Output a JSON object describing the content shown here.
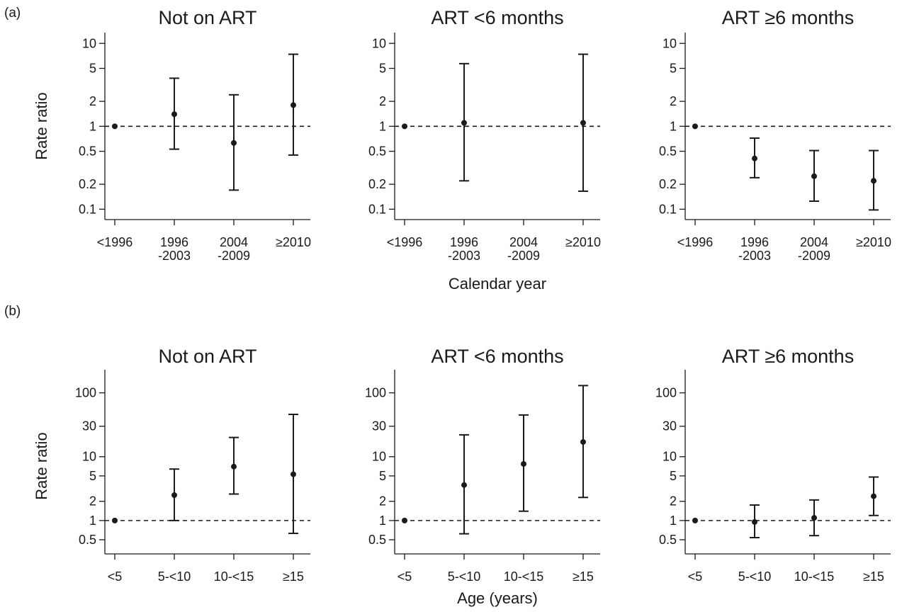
{
  "panel_labels": {
    "a": "(a)",
    "b": "(b)"
  },
  "chart_data": [
    {
      "panel": "a",
      "type": "scatter",
      "error_bars": true,
      "title": "Not on ART",
      "ylabel": "Rate ratio",
      "xlabel": "",
      "y_scale": "log",
      "ylim": [
        0.075,
        13.5
      ],
      "y_ticks": [
        10,
        5,
        2,
        1,
        0.5,
        0.2,
        0.1
      ],
      "y_tick_labels": [
        "10",
        "5",
        "2",
        "1",
        "0.5",
        "0.2",
        "0.1"
      ],
      "categories": [
        [
          "<1996"
        ],
        [
          "1996",
          "-2003"
        ],
        [
          "2004",
          "-2009"
        ],
        [
          "≥2010"
        ]
      ],
      "reference_line": 1,
      "grid": false,
      "points": [
        {
          "y": 1,
          "lower": null,
          "upper": null
        },
        {
          "y": 1.4,
          "lower": 0.53,
          "upper": 3.8
        },
        {
          "y": 0.63,
          "lower": 0.17,
          "upper": 2.4
        },
        {
          "y": 1.8,
          "lower": 0.45,
          "upper": 7.4
        }
      ]
    },
    {
      "panel": "a",
      "type": "scatter",
      "error_bars": true,
      "title": "ART <6 months",
      "ylabel": "",
      "xlabel": "Calendar year",
      "y_scale": "log",
      "ylim": [
        0.075,
        13.5
      ],
      "y_ticks": [
        10,
        5,
        2,
        1,
        0.5,
        0.2,
        0.1
      ],
      "y_tick_labels": [
        "10",
        "5",
        "2",
        "1",
        "0.5",
        "0.2",
        "0.1"
      ],
      "categories": [
        [
          "<1996"
        ],
        [
          "1996",
          "-2003"
        ],
        [
          "2004",
          "-2009"
        ],
        [
          "≥2010"
        ]
      ],
      "reference_line": 1,
      "grid": false,
      "points": [
        {
          "y": 1,
          "lower": null,
          "upper": null
        },
        {
          "y": 1.1,
          "lower": 0.22,
          "upper": 5.7
        },
        null,
        {
          "y": 1.1,
          "lower": 0.165,
          "upper": 7.4
        }
      ]
    },
    {
      "panel": "a",
      "type": "scatter",
      "error_bars": true,
      "title": "ART ≥6 months",
      "ylabel": "",
      "xlabel": "",
      "y_scale": "log",
      "ylim": [
        0.075,
        13.5
      ],
      "y_ticks": [
        10,
        5,
        2,
        1,
        0.5,
        0.2,
        0.1
      ],
      "y_tick_labels": [
        "10",
        "5",
        "2",
        "1",
        "0.5",
        "0.2",
        "0.1"
      ],
      "categories": [
        [
          "<1996"
        ],
        [
          "1996",
          "-2003"
        ],
        [
          "2004",
          "-2009"
        ],
        [
          "≥2010"
        ]
      ],
      "reference_line": 1,
      "grid": false,
      "points": [
        {
          "y": 1,
          "lower": null,
          "upper": null
        },
        {
          "y": 0.41,
          "lower": 0.24,
          "upper": 0.72
        },
        {
          "y": 0.25,
          "lower": 0.125,
          "upper": 0.51
        },
        {
          "y": 0.22,
          "lower": 0.098,
          "upper": 0.51
        }
      ]
    },
    {
      "panel": "b",
      "type": "scatter",
      "error_bars": true,
      "title": "Not on ART",
      "ylabel": "Rate ratio",
      "xlabel": "",
      "y_scale": "log",
      "ylim": [
        0.3,
        230
      ],
      "y_ticks": [
        100,
        30,
        10,
        5,
        2,
        1,
        0.5
      ],
      "y_tick_labels": [
        "100",
        "30",
        "10",
        "5",
        "2",
        "1",
        "0.5"
      ],
      "categories": [
        [
          "<5"
        ],
        [
          "5-<10"
        ],
        [
          "10-<15"
        ],
        [
          "≥15"
        ]
      ],
      "reference_line": 1,
      "grid": false,
      "points": [
        {
          "y": 1,
          "lower": null,
          "upper": null
        },
        {
          "y": 2.5,
          "lower": 1.0,
          "upper": 6.4
        },
        {
          "y": 7.0,
          "lower": 2.6,
          "upper": 20
        },
        {
          "y": 5.3,
          "lower": 0.63,
          "upper": 46
        }
      ]
    },
    {
      "panel": "b",
      "type": "scatter",
      "error_bars": true,
      "title": "ART <6 months",
      "ylabel": "",
      "xlabel": "Age (years)",
      "y_scale": "log",
      "ylim": [
        0.3,
        230
      ],
      "y_ticks": [
        100,
        30,
        10,
        5,
        2,
        1,
        0.5
      ],
      "y_tick_labels": [
        "100",
        "30",
        "10",
        "5",
        "2",
        "1",
        "0.5"
      ],
      "categories": [
        [
          "<5"
        ],
        [
          "5-<10"
        ],
        [
          "10-<15"
        ],
        [
          "≥15"
        ]
      ],
      "reference_line": 1,
      "grid": false,
      "points": [
        {
          "y": 1,
          "lower": null,
          "upper": null
        },
        {
          "y": 3.6,
          "lower": 0.62,
          "upper": 22
        },
        {
          "y": 7.7,
          "lower": 1.4,
          "upper": 45
        },
        {
          "y": 17,
          "lower": 2.3,
          "upper": 130
        }
      ]
    },
    {
      "panel": "b",
      "type": "scatter",
      "error_bars": true,
      "title": "ART ≥6 months",
      "ylabel": "",
      "xlabel": "",
      "y_scale": "log",
      "ylim": [
        0.3,
        230
      ],
      "y_ticks": [
        100,
        30,
        10,
        5,
        2,
        1,
        0.5
      ],
      "y_tick_labels": [
        "100",
        "30",
        "10",
        "5",
        "2",
        "1",
        "0.5"
      ],
      "categories": [
        [
          "<5"
        ],
        [
          "5-<10"
        ],
        [
          "10-<15"
        ],
        [
          "≥15"
        ]
      ],
      "reference_line": 1,
      "grid": false,
      "points": [
        {
          "y": 1,
          "lower": null,
          "upper": null
        },
        {
          "y": 0.95,
          "lower": 0.54,
          "upper": 1.75
        },
        {
          "y": 1.1,
          "lower": 0.58,
          "upper": 2.1
        },
        {
          "y": 2.4,
          "lower": 1.2,
          "upper": 4.8
        }
      ]
    }
  ]
}
